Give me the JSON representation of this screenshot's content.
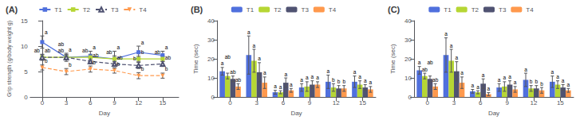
{
  "chart_data": [
    {
      "type": "line",
      "title": "(A)",
      "xlabel": "Day",
      "ylabel": "Grip strength (g/body weight g)",
      "x": [
        0,
        3,
        6,
        9,
        12,
        15
      ],
      "xlim": [
        -1.5,
        17
      ],
      "xticks": [
        0,
        3,
        6,
        9,
        12,
        15
      ],
      "ylim": [
        0,
        15
      ],
      "yticks": [
        0,
        5,
        10,
        15
      ],
      "grid": false,
      "legend": "top",
      "series": [
        {
          "name": "T1",
          "marker": "square",
          "line_style": "solid",
          "values": [
            10.8,
            7.8,
            8.0,
            7.5,
            8.8,
            8.2
          ],
          "errors": [
            1.2,
            0.8,
            1.0,
            1.5,
            1.2,
            0.8
          ],
          "annotations": [
            "a",
            "a",
            "a",
            "a",
            "a",
            "a"
          ]
        },
        {
          "name": "T2",
          "marker": "square",
          "line_style": "solid",
          "values": [
            7.8,
            7.8,
            7.8,
            7.5,
            7.5,
            7.5
          ],
          "errors": [
            0.5,
            0.5,
            0.6,
            0.6,
            0.5,
            0.5
          ],
          "annotations": [
            "ab",
            "ab",
            "ab",
            "ab",
            "b",
            "ab"
          ]
        },
        {
          "name": "T3",
          "marker": "open_triangle",
          "line_style": "dashed",
          "values": [
            7.8,
            7.8,
            7.0,
            6.5,
            6.2,
            6.5
          ],
          "errors": [
            0.6,
            0.5,
            0.5,
            0.5,
            0.6,
            0.5
          ],
          "annotations": [
            "ab",
            "ab",
            "ab",
            "ab",
            "b",
            "ab"
          ]
        },
        {
          "name": "T4",
          "marker": "triangle_down",
          "line_style": "dashed",
          "values": [
            5.8,
            5.0,
            5.5,
            5.2,
            4.2,
            4.2
          ],
          "errors": [
            0.5,
            0.6,
            0.6,
            0.5,
            0.6,
            0.5
          ],
          "annotations": [
            "b",
            "b",
            "b",
            "b",
            "b",
            "b"
          ]
        }
      ]
    },
    {
      "type": "bar",
      "title": "(B)",
      "xlabel": "Day",
      "ylabel": "Time (sec)",
      "categories": [
        "0",
        "3",
        "6",
        "9",
        "12",
        "15"
      ],
      "ylim": [
        0,
        40
      ],
      "yticks": [
        0,
        10,
        20,
        30,
        40
      ],
      "grid": false,
      "legend": "top",
      "series": [
        {
          "name": "T1",
          "values": [
            13.5,
            22.0,
            2.5,
            5.0,
            8.0,
            8.0
          ],
          "errors": [
            2.0,
            10.0,
            1.0,
            2.0,
            3.5,
            3.0
          ],
          "annotations": [
            "a",
            "a",
            "a",
            "a",
            "a",
            "a"
          ]
        },
        {
          "name": "T2",
          "values": [
            11.0,
            19.0,
            2.5,
            5.5,
            5.0,
            6.5
          ],
          "errors": [
            1.5,
            6.0,
            0.8,
            2.5,
            2.0,
            2.0
          ],
          "annotations": [
            "ab",
            "a",
            "a",
            "a",
            "b",
            "a"
          ]
        },
        {
          "name": "T3",
          "values": [
            9.5,
            13.0,
            7.5,
            6.5,
            4.5,
            5.0
          ],
          "errors": [
            1.5,
            5.0,
            2.5,
            2.0,
            1.5,
            1.5
          ],
          "annotations": [
            "ab",
            "a",
            "a",
            "a",
            "b",
            "a"
          ]
        },
        {
          "name": "T4",
          "values": [
            5.5,
            7.5,
            3.5,
            6.5,
            4.5,
            4.0
          ],
          "errors": [
            1.5,
            3.0,
            1.0,
            1.5,
            1.5,
            1.5
          ],
          "annotations": [
            "ab",
            "a",
            "a",
            "a",
            "b",
            "a"
          ]
        }
      ]
    },
    {
      "type": "bar",
      "title": "(C)",
      "xlabel": "Day",
      "ylabel": "Time (sec)",
      "categories": [
        "0",
        "3",
        "6",
        "9",
        "12",
        "15"
      ],
      "ylim": [
        0,
        40
      ],
      "yticks": [
        0,
        10,
        20,
        30,
        40
      ],
      "grid": false,
      "legend": "top",
      "series": [
        {
          "name": "T1",
          "values": [
            14.0,
            22.0,
            3.0,
            5.0,
            9.0,
            8.0
          ],
          "errors": [
            2.0,
            9.0,
            1.0,
            2.0,
            3.5,
            3.0
          ],
          "annotations": [
            "a",
            "a",
            "a",
            "a",
            "a",
            "a"
          ]
        },
        {
          "name": "T2",
          "values": [
            11.0,
            19.0,
            2.5,
            5.5,
            4.5,
            6.5
          ],
          "errors": [
            1.5,
            6.0,
            0.8,
            2.5,
            1.5,
            2.0
          ],
          "annotations": [
            "ab",
            "a",
            "a",
            "a",
            "b",
            "a"
          ]
        },
        {
          "name": "T3",
          "values": [
            9.5,
            13.5,
            7.0,
            6.5,
            4.5,
            5.0
          ],
          "errors": [
            1.5,
            5.0,
            2.5,
            2.0,
            1.5,
            1.5
          ],
          "annotations": [
            "ab",
            "a",
            "a",
            "a",
            "b",
            "a"
          ]
        },
        {
          "name": "T4",
          "values": [
            5.5,
            7.5,
            1.5,
            4.0,
            3.5,
            3.5
          ],
          "errors": [
            1.5,
            3.0,
            0.8,
            1.5,
            1.5,
            1.0
          ],
          "annotations": [
            "ab",
            "a",
            "a",
            "a",
            "b",
            "a"
          ]
        }
      ]
    }
  ]
}
